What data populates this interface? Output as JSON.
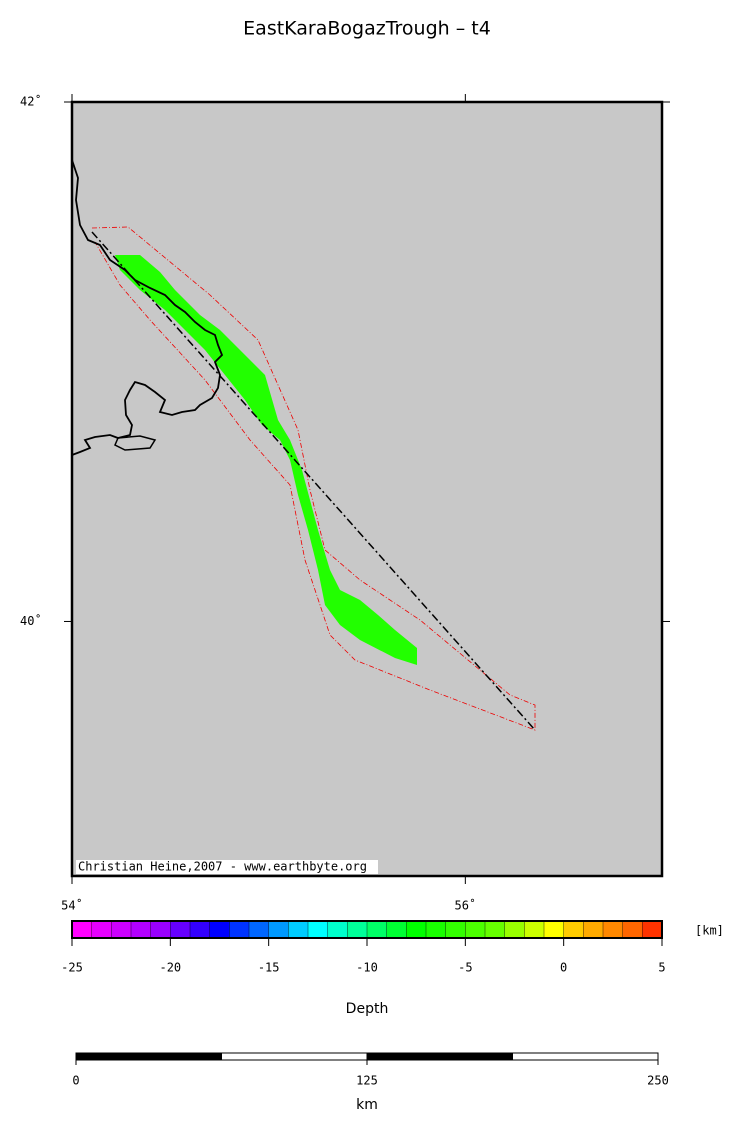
{
  "header": {
    "title": "EastKaraBogazTrough – t4"
  },
  "map": {
    "xlim": [
      54,
      57
    ],
    "ylim": [
      39.02,
      42
    ],
    "lon_ticks": [
      {
        "value": 54,
        "label": "54˚"
      },
      {
        "value": 56,
        "label": "56˚"
      }
    ],
    "lat_ticks": [
      {
        "value": 42,
        "label": "42˚"
      },
      {
        "value": 40,
        "label": "40˚"
      }
    ],
    "credit": "Christian Heine,2007 - www.earthbyte.org"
  },
  "colorbar": {
    "label": "Depth",
    "unit": "[km]",
    "lim": [
      -25,
      5
    ],
    "ticks": [
      -25,
      -20,
      -15,
      -10,
      -5,
      0,
      5
    ],
    "colors": [
      "#ff00ff",
      "#e600ff",
      "#cc00ff",
      "#b300ff",
      "#9900ff",
      "#6600ff",
      "#3300ff",
      "#0000ff",
      "#0033ff",
      "#0066ff",
      "#0099ff",
      "#00ccff",
      "#00ffff",
      "#00ffcc",
      "#00ff99",
      "#00ff66",
      "#00ff33",
      "#00ff00",
      "#19ff00",
      "#33ff00",
      "#4cff00",
      "#66ff00",
      "#99ff00",
      "#ccff00",
      "#ffff00",
      "#ffcc00",
      "#ffaa00",
      "#ff8800",
      "#ff6600",
      "#ff3300"
    ]
  },
  "scalebar": {
    "label": "km",
    "lim": [
      0,
      250
    ],
    "ticks": [
      0,
      125,
      250
    ]
  }
}
